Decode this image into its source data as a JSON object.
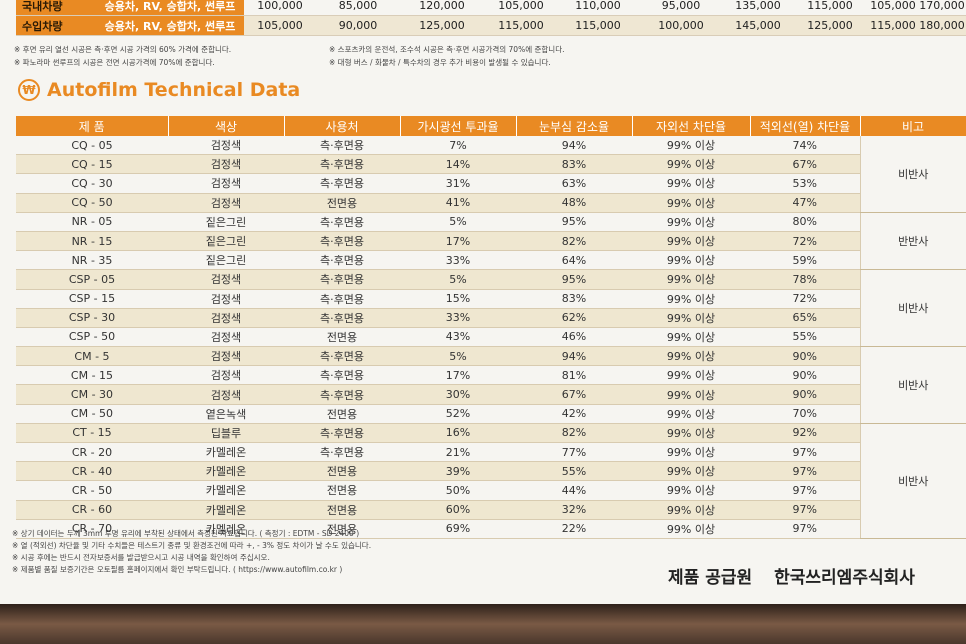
{
  "top_table": {
    "rows": [
      {
        "type": "국내차량",
        "cells": [
          "승용차, RV, 승합차, 썬루프",
          "100,000",
          "85,000",
          "120,000",
          "105,000",
          "110,000",
          "95,000",
          "135,000",
          "115,000",
          "105,000",
          "170,000"
        ]
      },
      {
        "type": "수입차량",
        "cells": [
          "승용차, RV, 승합차, 썬루프",
          "105,000",
          "90,000",
          "125,000",
          "115,000",
          "115,000",
          "100,000",
          "145,000",
          "125,000",
          "115,000",
          "180,000"
        ]
      }
    ]
  },
  "notes_top_left": [
    "※ 후면 유리 열선 시공은 측·후면 시공 가격의 60% 가격에 준합니다.",
    "※ 파노라마 썬루프의 시공은 전면 시공가격에 70%에 준합니다."
  ],
  "notes_top_right": [
    "※ 스포츠카의 운전석, 조수석 시공은 측·후면 시공가격의 70%에 준합니다.",
    "※ 대형 버스 / 화물차 / 특수차의 경우 추가 비용이 발생될 수 있습니다."
  ],
  "section_title": "Autofilm Technical Data",
  "title_icon_glyph": "₩",
  "main_table": {
    "headers": [
      "제 품",
      "색상",
      "사용처",
      "가시광선 투과율",
      "눈부심 감소율",
      "자외선 차단율",
      "적외선(열) 차단율",
      "비고"
    ],
    "rows": [
      [
        "CQ - 05",
        "검정색",
        "측·후면용",
        "7%",
        "94%",
        "99% 이상",
        "74%"
      ],
      [
        "CQ - 15",
        "검정색",
        "측·후면용",
        "14%",
        "83%",
        "99% 이상",
        "67%"
      ],
      [
        "CQ - 30",
        "검정색",
        "측·후면용",
        "31%",
        "63%",
        "99% 이상",
        "53%"
      ],
      [
        "CQ - 50",
        "검정색",
        "전면용",
        "41%",
        "48%",
        "99% 이상",
        "47%"
      ],
      [
        "NR - 05",
        "짙은그린",
        "측·후면용",
        "5%",
        "95%",
        "99% 이상",
        "80%"
      ],
      [
        "NR - 15",
        "짙은그린",
        "측·후면용",
        "17%",
        "82%",
        "99% 이상",
        "72%"
      ],
      [
        "NR - 35",
        "짙은그린",
        "측·후면용",
        "33%",
        "64%",
        "99% 이상",
        "59%"
      ],
      [
        "CSP - 05",
        "검정색",
        "측·후면용",
        "5%",
        "95%",
        "99% 이상",
        "78%"
      ],
      [
        "CSP - 15",
        "검정색",
        "측·후면용",
        "15%",
        "83%",
        "99% 이상",
        "72%"
      ],
      [
        "CSP - 30",
        "검정색",
        "측·후면용",
        "33%",
        "62%",
        "99% 이상",
        "65%"
      ],
      [
        "CSP - 50",
        "검정색",
        "전면용",
        "43%",
        "46%",
        "99% 이상",
        "55%"
      ],
      [
        "CM - 5",
        "검정색",
        "측·후면용",
        "5%",
        "94%",
        "99% 이상",
        "90%"
      ],
      [
        "CM - 15",
        "검정색",
        "측·후면용",
        "17%",
        "81%",
        "99% 이상",
        "90%"
      ],
      [
        "CM - 30",
        "검정색",
        "측·후면용",
        "30%",
        "67%",
        "99% 이상",
        "90%"
      ],
      [
        "CM - 50",
        "옅은녹색",
        "전면용",
        "52%",
        "42%",
        "99% 이상",
        "70%"
      ],
      [
        "CT - 15",
        "딥블루",
        "측·후면용",
        "16%",
        "82%",
        "99% 이상",
        "92%"
      ],
      [
        "CR - 20",
        "카멜레온",
        "측·후면용",
        "21%",
        "77%",
        "99% 이상",
        "97%"
      ],
      [
        "CR - 40",
        "카멜레온",
        "전면용",
        "39%",
        "55%",
        "99% 이상",
        "97%"
      ],
      [
        "CR - 50",
        "카멜레온",
        "전면용",
        "50%",
        "44%",
        "99% 이상",
        "97%"
      ],
      [
        "CR - 60",
        "카멜레온",
        "전면용",
        "60%",
        "32%",
        "99% 이상",
        "97%"
      ],
      [
        "CR - 70",
        "카멜레온",
        "전면용",
        "69%",
        "22%",
        "99% 이상",
        "97%"
      ]
    ],
    "remarks": [
      {
        "text": "비반사",
        "rows": 4
      },
      {
        "text": "반반사",
        "rows": 3
      },
      {
        "text": "비반사",
        "rows": 4
      },
      {
        "text": "비반사",
        "rows": 4
      },
      {
        "text": "비반사",
        "rows": 6
      }
    ]
  },
  "notes_bottom": [
    "※ 상기 데이터는 두께 3mm 투명 유리에 부착된 상태에서 측정된 자료입니다. ( 측정기 : EDTM - SD 2400 )",
    "※ 열 (적외선) 차단율 및 기타 수치들은 테스트기 종류 및 환경조건에 따라 +, - 3% 정도 차이가 날 수도 있습니다.",
    "※ 시공 후에는 반드시 전자보증서를 발급받으시고 시공 내역을 확인하여 주십시오.",
    "※ 제품별 품질 보증기간은 오토필름 홈페이지에서 확인 부탁드립니다. ( https://www.autofilm.co.kr )"
  ],
  "supplier_label": "제품 공급원",
  "supplier_name": "한국쓰리엠주식회사",
  "colors": {
    "accent": "#e98a23",
    "stripe": "#efe7d0"
  }
}
